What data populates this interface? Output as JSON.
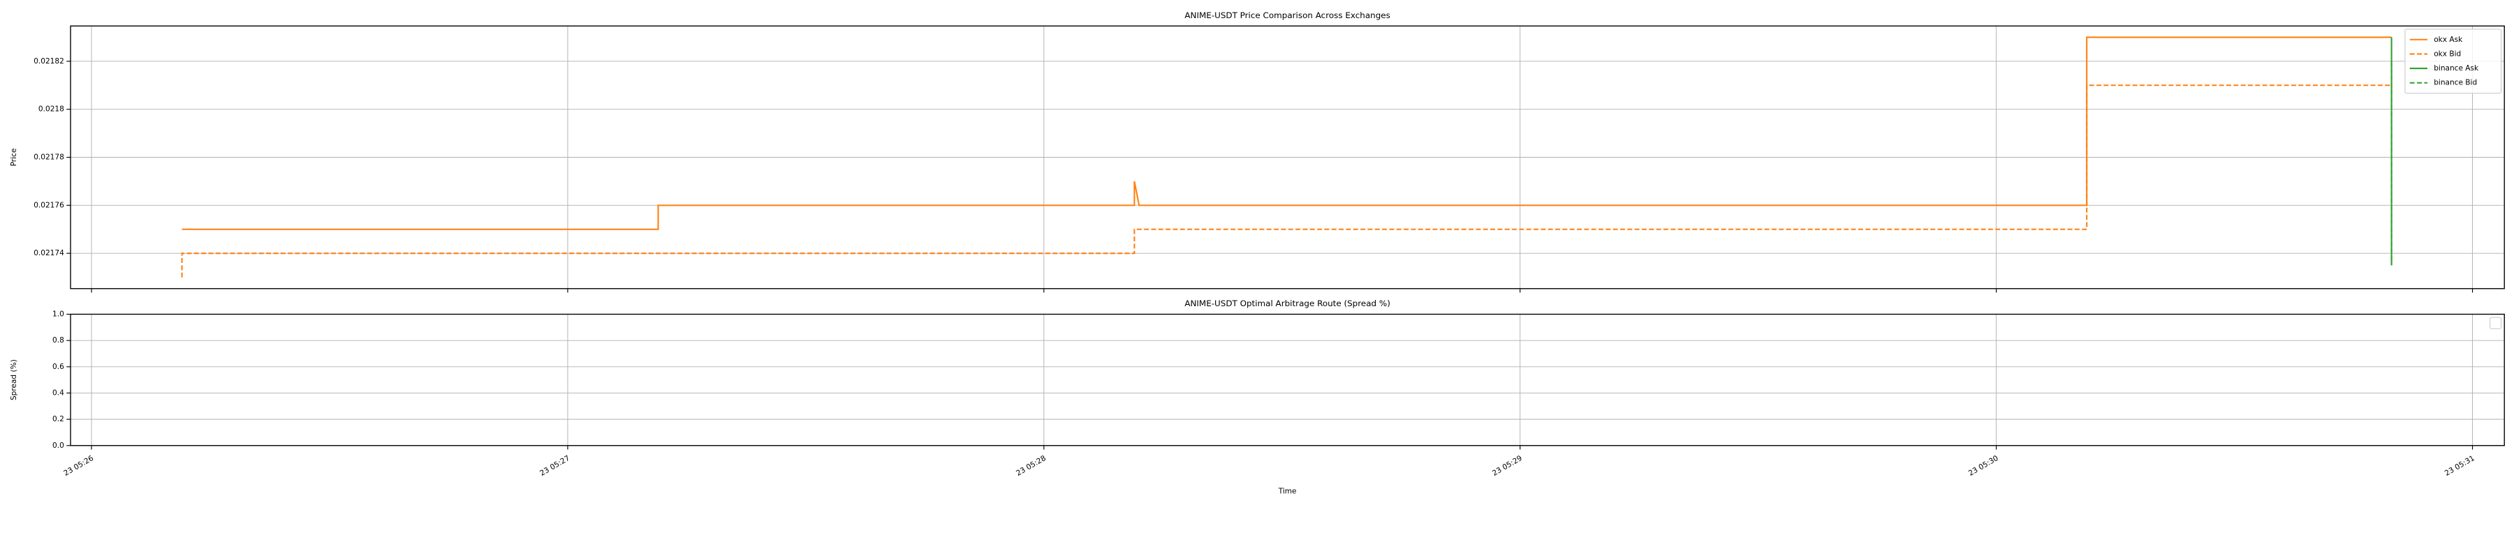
{
  "chart_data": [
    {
      "type": "line",
      "title": "ANIME-USDT Price Comparison Across Exchanges",
      "y_label": "Price",
      "xlim": [
        325.956,
        331.067
      ],
      "ylim": [
        0.0217253,
        0.0218347
      ],
      "yticks": [
        0.02174,
        0.02176,
        0.02178,
        0.0218,
        0.02182
      ],
      "grid": true,
      "legend": "upper right",
      "series": [
        {
          "name": "okx Ask",
          "color": "#ff7f0e",
          "linestyle": "solid",
          "x": [
            326.19,
            327.19,
            327.19,
            328.19,
            328.19,
            328.2,
            330.19,
            330.19,
            330.83
          ],
          "values": [
            0.02175,
            0.02175,
            0.02176,
            0.02176,
            0.02177,
            0.02176,
            0.02176,
            0.02183,
            0.02183
          ]
        },
        {
          "name": "okx Bid",
          "color": "#ff7f0e",
          "linestyle": "dashed",
          "x": [
            326.19,
            326.19,
            328.19,
            328.19,
            330.19,
            330.19,
            330.83
          ],
          "values": [
            0.02173,
            0.02174,
            0.02174,
            0.02175,
            0.02175,
            0.02181,
            0.02181
          ]
        },
        {
          "name": "binance Ask",
          "color": "#2ca02c",
          "linestyle": "solid",
          "x": [
            330.83,
            330.83
          ],
          "values": [
            0.02183,
            0.021735
          ]
        },
        {
          "name": "binance Bid",
          "color": "#2ca02c",
          "linestyle": "dashed",
          "x": [
            330.83,
            330.83
          ],
          "values": [
            0.02182,
            0.021735
          ]
        }
      ]
    },
    {
      "type": "line",
      "title": "ANIME-USDT Optimal Arbitrage Route (Spread %)",
      "y_label": "Spread (%)",
      "x_label": "Time",
      "xlim": [
        325.956,
        331.067
      ],
      "ylim": [
        0,
        1
      ],
      "yticks": [
        {
          "value": 0,
          "label": "0.0"
        },
        {
          "value": 0.2,
          "label": "0.2"
        },
        {
          "value": 0.4,
          "label": "0.4"
        },
        {
          "value": 0.6,
          "label": "0.6"
        },
        {
          "value": 0.8,
          "label": "0.8"
        },
        {
          "value": 1,
          "label": "1.0"
        }
      ],
      "xticks": [
        {
          "value": 326,
          "label": "23 05:26"
        },
        {
          "value": 327,
          "label": "23 05:27"
        },
        {
          "value": 328,
          "label": "23 05:28"
        },
        {
          "value": 329,
          "label": "23 05:29"
        },
        {
          "value": 330,
          "label": "23 05:30"
        },
        {
          "value": 331,
          "label": "23 05:31"
        }
      ],
      "grid": true,
      "legend": "upper right",
      "series": []
    }
  ]
}
